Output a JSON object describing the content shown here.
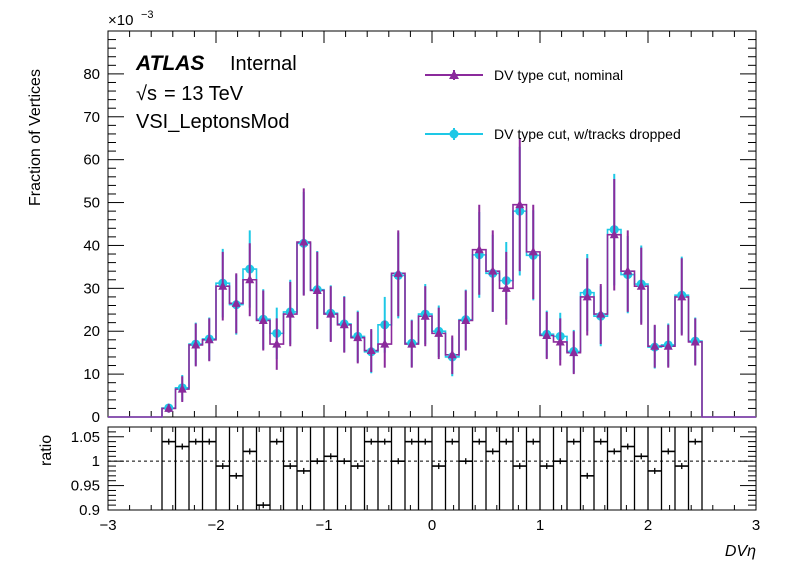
{
  "texts": {
    "exponent": "×10",
    "exponent_power": "−3",
    "atlas": "ATLAS",
    "internal": "Internal",
    "energy_sqrt": "√s",
    "energy": "= 13 TeV",
    "selection": "VSI_LeptonsMod"
  },
  "colors": {
    "nominal": "#8b2a9c",
    "dropped": "#1ec8e6"
  },
  "chart_data": [
    {
      "type": "line",
      "panel": "main",
      "ylabel": "Fraction of Vertices",
      "xlabel": "",
      "xlim": [
        -3,
        3
      ],
      "ylim": [
        0,
        90
      ],
      "yticks": [
        0,
        10,
        20,
        30,
        40,
        50,
        60,
        70,
        80
      ],
      "ytick_labels": [
        "0",
        "10",
        "20",
        "30",
        "40",
        "50",
        "60",
        "70",
        "80"
      ],
      "y_scale_note": "×10^−3",
      "legend_placement": "top-right",
      "bin_edges": [
        -2.5,
        -2.375,
        -2.25,
        -2.125,
        -2.0,
        -1.875,
        -1.75,
        -1.625,
        -1.5,
        -1.375,
        -1.25,
        -1.125,
        -1.0,
        -0.875,
        -0.75,
        -0.625,
        -0.5,
        -0.375,
        -0.25,
        -0.125,
        0.0,
        0.125,
        0.25,
        0.375,
        0.5,
        0.625,
        0.75,
        0.875,
        1.0,
        1.125,
        1.25,
        1.375,
        1.5,
        1.625,
        1.75,
        1.875,
        2.0,
        2.125,
        2.25,
        2.375,
        2.5
      ],
      "series": [
        {
          "name": "DV type cut, nominal",
          "values": [
            2.0,
            6.5,
            16.8,
            18.0,
            30.5,
            26.5,
            32.0,
            22.5,
            17.0,
            24.0,
            40.8,
            29.5,
            24.0,
            21.5,
            18.5,
            15.5,
            17.0,
            33.5,
            17.0,
            23.5,
            19.5,
            14.5,
            22.5,
            39.0,
            34.0,
            30.0,
            49.5,
            38.5,
            19.0,
            17.5,
            15.0,
            28.0,
            24.0,
            42.5,
            34.0,
            30.5,
            16.5,
            16.5,
            28.0,
            17.5
          ],
          "errors": [
            1.0,
            3.0,
            5.0,
            5.0,
            8.0,
            7.0,
            8.5,
            7.0,
            6.0,
            7.5,
            12.5,
            9.0,
            6.5,
            6.5,
            6.0,
            5.0,
            5.5,
            10.0,
            5.5,
            7.0,
            6.0,
            4.5,
            7.0,
            10.5,
            9.5,
            8.5,
            15.5,
            11.0,
            5.5,
            5.5,
            5.0,
            9.0,
            7.0,
            13.0,
            9.5,
            9.0,
            5.0,
            5.0,
            9.0,
            5.5
          ]
        },
        {
          "name": "DV type cut, w/tracks dropped",
          "values": [
            2.1,
            6.8,
            17.0,
            18.2,
            31.2,
            26.2,
            34.5,
            22.8,
            19.5,
            24.5,
            40.5,
            29.7,
            24.2,
            21.7,
            18.8,
            15.2,
            21.5,
            33.0,
            17.2,
            24.0,
            20.0,
            14.0,
            22.7,
            37.8,
            33.5,
            31.8,
            48.0,
            37.7,
            19.3,
            18.8,
            15.3,
            29.0,
            23.5,
            43.7,
            33.2,
            31.0,
            16.3,
            16.8,
            28.4,
            17.7
          ],
          "errors": [
            1.0,
            3.0,
            5.0,
            5.0,
            8.0,
            7.0,
            9.0,
            7.0,
            6.0,
            7.5,
            12.0,
            9.0,
            6.5,
            6.5,
            6.0,
            5.0,
            6.5,
            10.0,
            5.5,
            7.0,
            6.0,
            4.5,
            7.0,
            10.0,
            9.0,
            9.0,
            15.0,
            10.5,
            5.5,
            5.5,
            5.0,
            9.0,
            7.0,
            13.0,
            9.0,
            9.0,
            5.0,
            5.0,
            9.0,
            5.5
          ]
        }
      ]
    },
    {
      "type": "line",
      "panel": "ratio",
      "ylabel": "ratio",
      "xlabel": "DVη",
      "xlim": [
        -3,
        3
      ],
      "ylim": [
        0.9,
        1.07
      ],
      "reference_line": 1.0,
      "xticks": [
        -3,
        -2,
        -1,
        0,
        1,
        2,
        3
      ],
      "xtick_labels": [
        "−3",
        "−2",
        "−1",
        "0",
        "1",
        "2",
        "3"
      ],
      "yticks": [
        0.9,
        0.95,
        1.0,
        1.05
      ],
      "ytick_labels": [
        "0.9",
        "0.95",
        "1",
        "1.05"
      ],
      "bin_edges": [
        -2.5,
        -2.375,
        -2.25,
        -2.125,
        -2.0,
        -1.875,
        -1.75,
        -1.625,
        -1.5,
        -1.375,
        -1.25,
        -1.125,
        -1.0,
        -0.875,
        -0.75,
        -0.625,
        -0.5,
        -0.375,
        -0.25,
        -0.125,
        0.0,
        0.125,
        0.25,
        0.375,
        0.5,
        0.625,
        0.75,
        0.875,
        1.0,
        1.125,
        1.25,
        1.375,
        1.5,
        1.625,
        1.75,
        1.875,
        2.0,
        2.125,
        2.25,
        2.375,
        2.5
      ],
      "values": [
        1.04,
        1.03,
        1.04,
        1.04,
        0.99,
        0.97,
        1.02,
        0.91,
        1.04,
        0.99,
        0.98,
        1.0,
        1.01,
        1.0,
        0.99,
        1.04,
        1.04,
        1.0,
        1.04,
        1.04,
        0.99,
        1.04,
        1.0,
        1.04,
        1.02,
        1.04,
        0.99,
        1.04,
        0.99,
        1.0,
        1.04,
        0.97,
        1.04,
        1.02,
        1.03,
        1.01,
        0.98,
        1.02,
        0.99,
        1.04
      ]
    }
  ]
}
